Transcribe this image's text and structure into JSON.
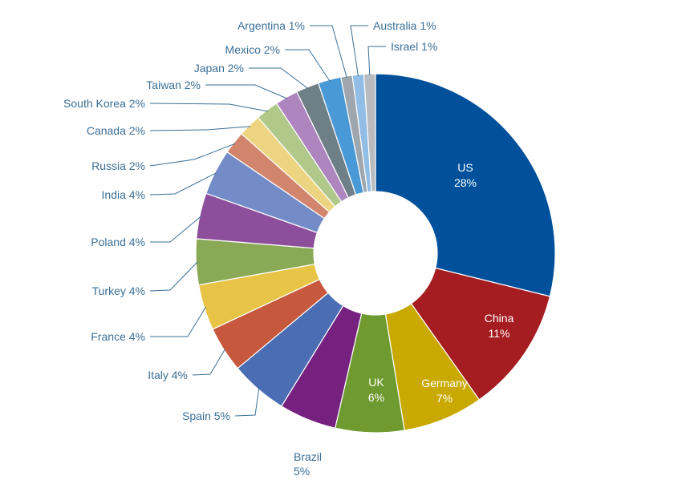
{
  "chart_data": {
    "type": "pie",
    "donut": true,
    "title": "",
    "slices": [
      {
        "label": "US",
        "value": 28,
        "value_label": "28%",
        "color": "#00509b"
      },
      {
        "label": "China",
        "value": 11,
        "value_label": "11%",
        "color": "#a51d21"
      },
      {
        "label": "Germany",
        "value": 7,
        "value_label": "7%",
        "color": "#c9a900"
      },
      {
        "label": "UK",
        "value": 6,
        "value_label": "6%",
        "color": "#6e9a2f"
      },
      {
        "label": "Brazil",
        "value": 5,
        "value_label": "5%",
        "color": "#762180"
      },
      {
        "label": "Spain",
        "value": 5,
        "value_label": "5%",
        "color": "#4a6db3"
      },
      {
        "label": "Italy",
        "value": 4,
        "value_label": "4%",
        "color": "#c6593d"
      },
      {
        "label": "France",
        "value": 4,
        "value_label": "4%",
        "color": "#e7c445"
      },
      {
        "label": "Turkey",
        "value": 4,
        "value_label": "4%",
        "color": "#8aa956"
      },
      {
        "label": "Poland",
        "value": 4,
        "value_label": "4%",
        "color": "#8d4f9c"
      },
      {
        "label": "India",
        "value": 4,
        "value_label": "4%",
        "color": "#738cc7"
      },
      {
        "label": "Russia",
        "value": 2,
        "value_label": "2%",
        "color": "#d2856d"
      },
      {
        "label": "Canada",
        "value": 2,
        "value_label": "2%",
        "color": "#ecd480"
      },
      {
        "label": "South Korea",
        "value": 2,
        "value_label": "2%",
        "color": "#b0c98b"
      },
      {
        "label": "Taiwan",
        "value": 2,
        "value_label": "2%",
        "color": "#ae85bf"
      },
      {
        "label": "Japan",
        "value": 2,
        "value_label": "2%",
        "color": "#6e7f86"
      },
      {
        "label": "Mexico",
        "value": 2,
        "value_label": "2%",
        "color": "#4899d6"
      },
      {
        "label": "Argentina",
        "value": 1,
        "value_label": "1%",
        "color": "#9ea7ad"
      },
      {
        "label": "Australia",
        "value": 1,
        "value_label": "1%",
        "color": "#92bde5"
      },
      {
        "label": "Israel",
        "value": 1,
        "value_label": "1%",
        "color": "#b8bcbf"
      }
    ]
  }
}
